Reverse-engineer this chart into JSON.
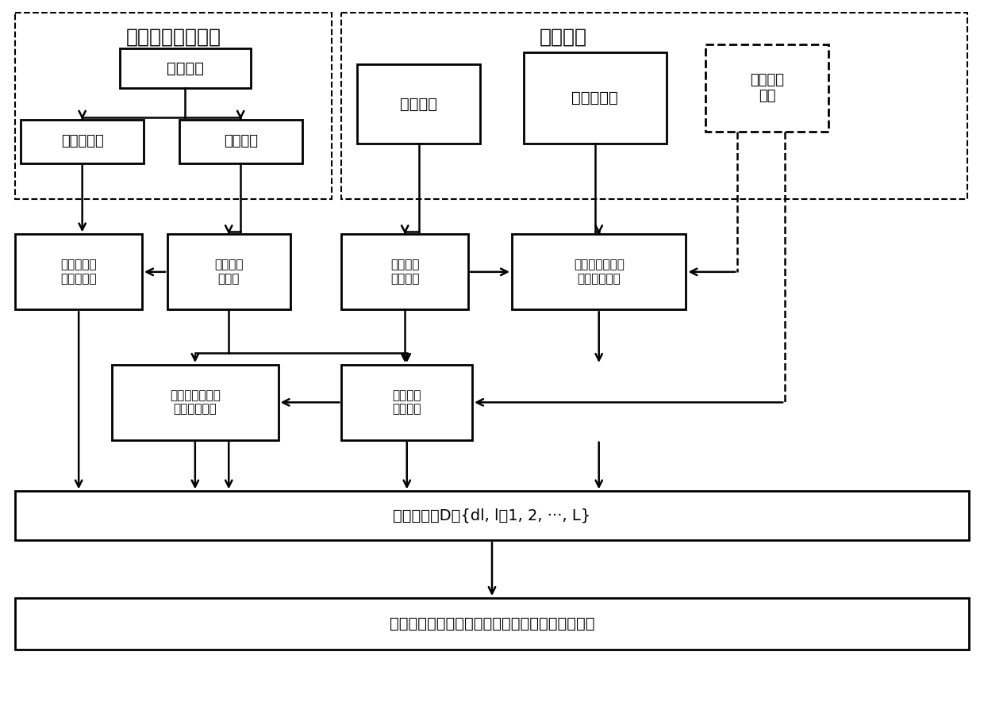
{
  "title_left": "试验设计约束条件",
  "title_right": "先验信息",
  "box_feiyong": "试验费用",
  "box_yangbenliang": "试样样本量",
  "box_shijian": "试验时间",
  "box_jijiyingli": "极限应力",
  "box_wendingxing": "稳定性阈值",
  "box_jiasu": "加速变化\n模型",
  "box_r2a": "各个应力水\n平下样本量",
  "box_r2b": "试验应力\n水平数",
  "box_r2c": "最高试验\n应力水平",
  "box_r2d": "各个应力水平下\n最长试验时间",
  "box_r3a": "各个应力水平下\n试验测试次数",
  "box_r3b": "确定试验\n应力水平",
  "box_r4": "备选方案集D＝{dl, l＝1, 2, ···, L}",
  "box_r5": "根据工程经验和实施难易，确定加速变化试验方案",
  "bg_color": "#ffffff",
  "box_color": "#000000"
}
